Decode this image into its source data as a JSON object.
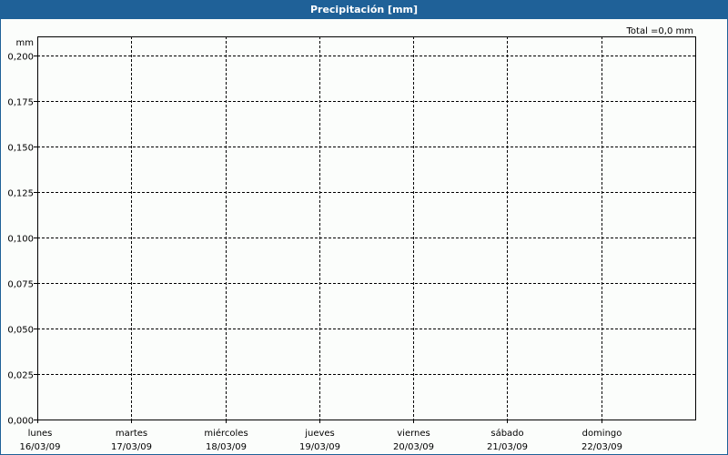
{
  "chart_data": {
    "type": "bar",
    "title": "Precipitación [mm]",
    "annotation": "Total =0,0 mm",
    "ylabel": "mm",
    "ylim": [
      0,
      0.2
    ],
    "yticks": [
      "0,000",
      "0,025",
      "0,050",
      "0,075",
      "0,100",
      "0,125",
      "0,150",
      "0,175",
      "0,200"
    ],
    "categories": [
      {
        "day": "lunes",
        "date": "16/03/09"
      },
      {
        "day": "martes",
        "date": "17/03/09"
      },
      {
        "day": "miércoles",
        "date": "18/03/09"
      },
      {
        "day": "jueves",
        "date": "19/03/09"
      },
      {
        "day": "viernes",
        "date": "20/03/09"
      },
      {
        "day": "sábado",
        "date": "21/03/09"
      },
      {
        "day": "domingo",
        "date": "22/03/09"
      }
    ],
    "values": [
      0,
      0,
      0,
      0,
      0,
      0,
      0
    ],
    "grid": true,
    "colors": {
      "header": "#1f6198",
      "bars": "#1f6198"
    }
  }
}
